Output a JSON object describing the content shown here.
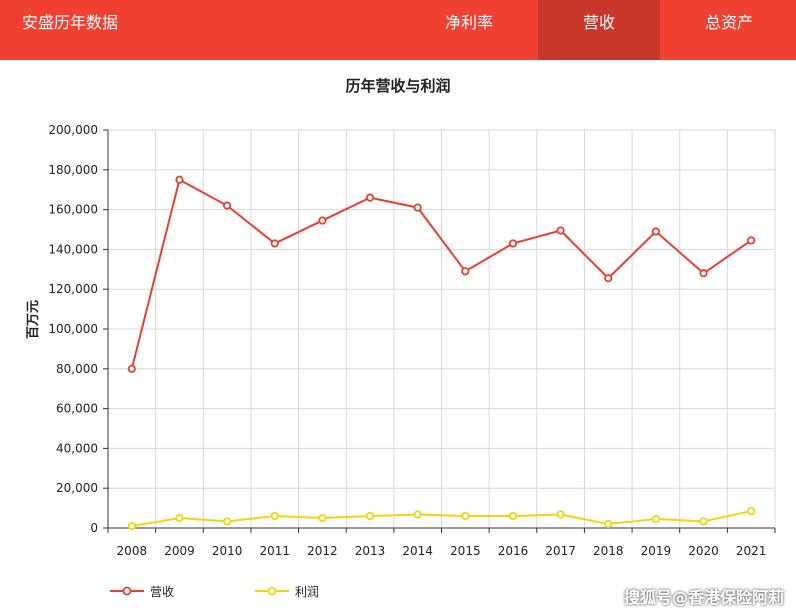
{
  "header": {
    "brand": "安盛历年数据",
    "tabs": [
      {
        "label": "净利率",
        "active": false
      },
      {
        "label": "营收",
        "active": true
      },
      {
        "label": "总资产",
        "active": false
      }
    ],
    "colors": {
      "bar": "#ef4031",
      "active_tab": "#c9372a"
    }
  },
  "watermark": "搜狐号@香港保险阿莉",
  "chart_data": {
    "type": "line",
    "title": "历年营收与利润",
    "ylabel": "百万元",
    "xlabel": "",
    "x": [
      "2008",
      "2009",
      "2010",
      "2011",
      "2012",
      "2013",
      "2014",
      "2015",
      "2016",
      "2017",
      "2018",
      "2019",
      "2020",
      "2021"
    ],
    "ylim": [
      0,
      200000
    ],
    "yticks": [
      "0",
      "20,000",
      "40,000",
      "60,000",
      "80,000",
      "100,000",
      "120,000",
      "140,000",
      "160,000",
      "180,000",
      "200,000"
    ],
    "grid": true,
    "legend_position": "bottom-left",
    "series": [
      {
        "name": "营收",
        "color": "#e8402f",
        "values": [
          80000,
          175000,
          162000,
          143000,
          154500,
          166000,
          161000,
          129000,
          143000,
          149500,
          125500,
          149000,
          128000,
          144500
        ]
      },
      {
        "name": "利润",
        "color": "#f5d40f",
        "values": [
          1000,
          5000,
          3300,
          6000,
          5000,
          6000,
          6800,
          6000,
          6000,
          6800,
          2000,
          4500,
          3300,
          8500
        ]
      }
    ]
  }
}
